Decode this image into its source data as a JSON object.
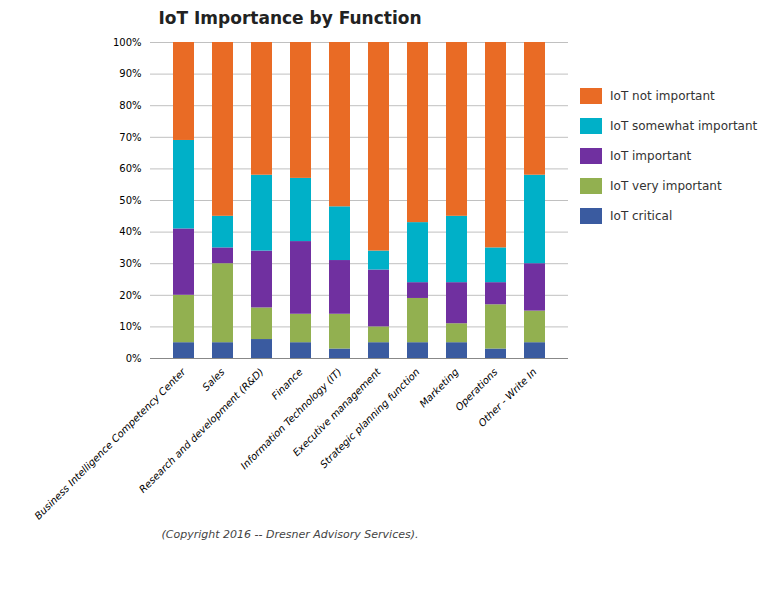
{
  "chart_data": {
    "type": "bar",
    "stacked": true,
    "title": "IoT Importance by Function",
    "caption": "(Copyright 2016 -- Dresner Advisory Services).",
    "categories": [
      "Business Intelligence Competency Center",
      "Sales",
      "Research and development (R&D)",
      "Finance",
      "Information Technology (IT)",
      "Executive management",
      "Strategic planning function",
      "Marketing",
      "Operations",
      "Other - Write In"
    ],
    "series": [
      {
        "name": "IoT critical",
        "color": "#3A5BA0",
        "values": [
          5,
          5,
          6,
          5,
          3,
          5,
          5,
          5,
          3,
          5
        ]
      },
      {
        "name": "IoT very important",
        "color": "#92B050",
        "values": [
          15,
          25,
          10,
          9,
          11,
          5,
          14,
          6,
          14,
          10
        ]
      },
      {
        "name": "IoT important",
        "color": "#7030A0",
        "values": [
          21,
          5,
          18,
          23,
          17,
          18,
          5,
          13,
          7,
          15
        ]
      },
      {
        "name": "IoT somewhat important",
        "color": "#00B0C8",
        "values": [
          28,
          10,
          24,
          20,
          17,
          6,
          19,
          21,
          11,
          28
        ]
      },
      {
        "name": "IoT not important",
        "color": "#E96B25",
        "values": [
          31,
          55,
          42,
          43,
          52,
          66,
          57,
          55,
          65,
          42
        ]
      }
    ],
    "ylim": [
      0,
      100
    ],
    "yticks": [
      {
        "value": 0,
        "label": "0%"
      },
      {
        "value": 10,
        "label": "10%"
      },
      {
        "value": 20,
        "label": "20%"
      },
      {
        "value": 30,
        "label": "30%"
      },
      {
        "value": 40,
        "label": "40%"
      },
      {
        "value": 50,
        "label": "50%"
      },
      {
        "value": 60,
        "label": "60%"
      },
      {
        "value": 70,
        "label": "70%"
      },
      {
        "value": 80,
        "label": "80%"
      },
      {
        "value": 90,
        "label": "90%"
      },
      {
        "value": 100,
        "label": "100%"
      }
    ],
    "grid": true,
    "legend": "right"
  }
}
